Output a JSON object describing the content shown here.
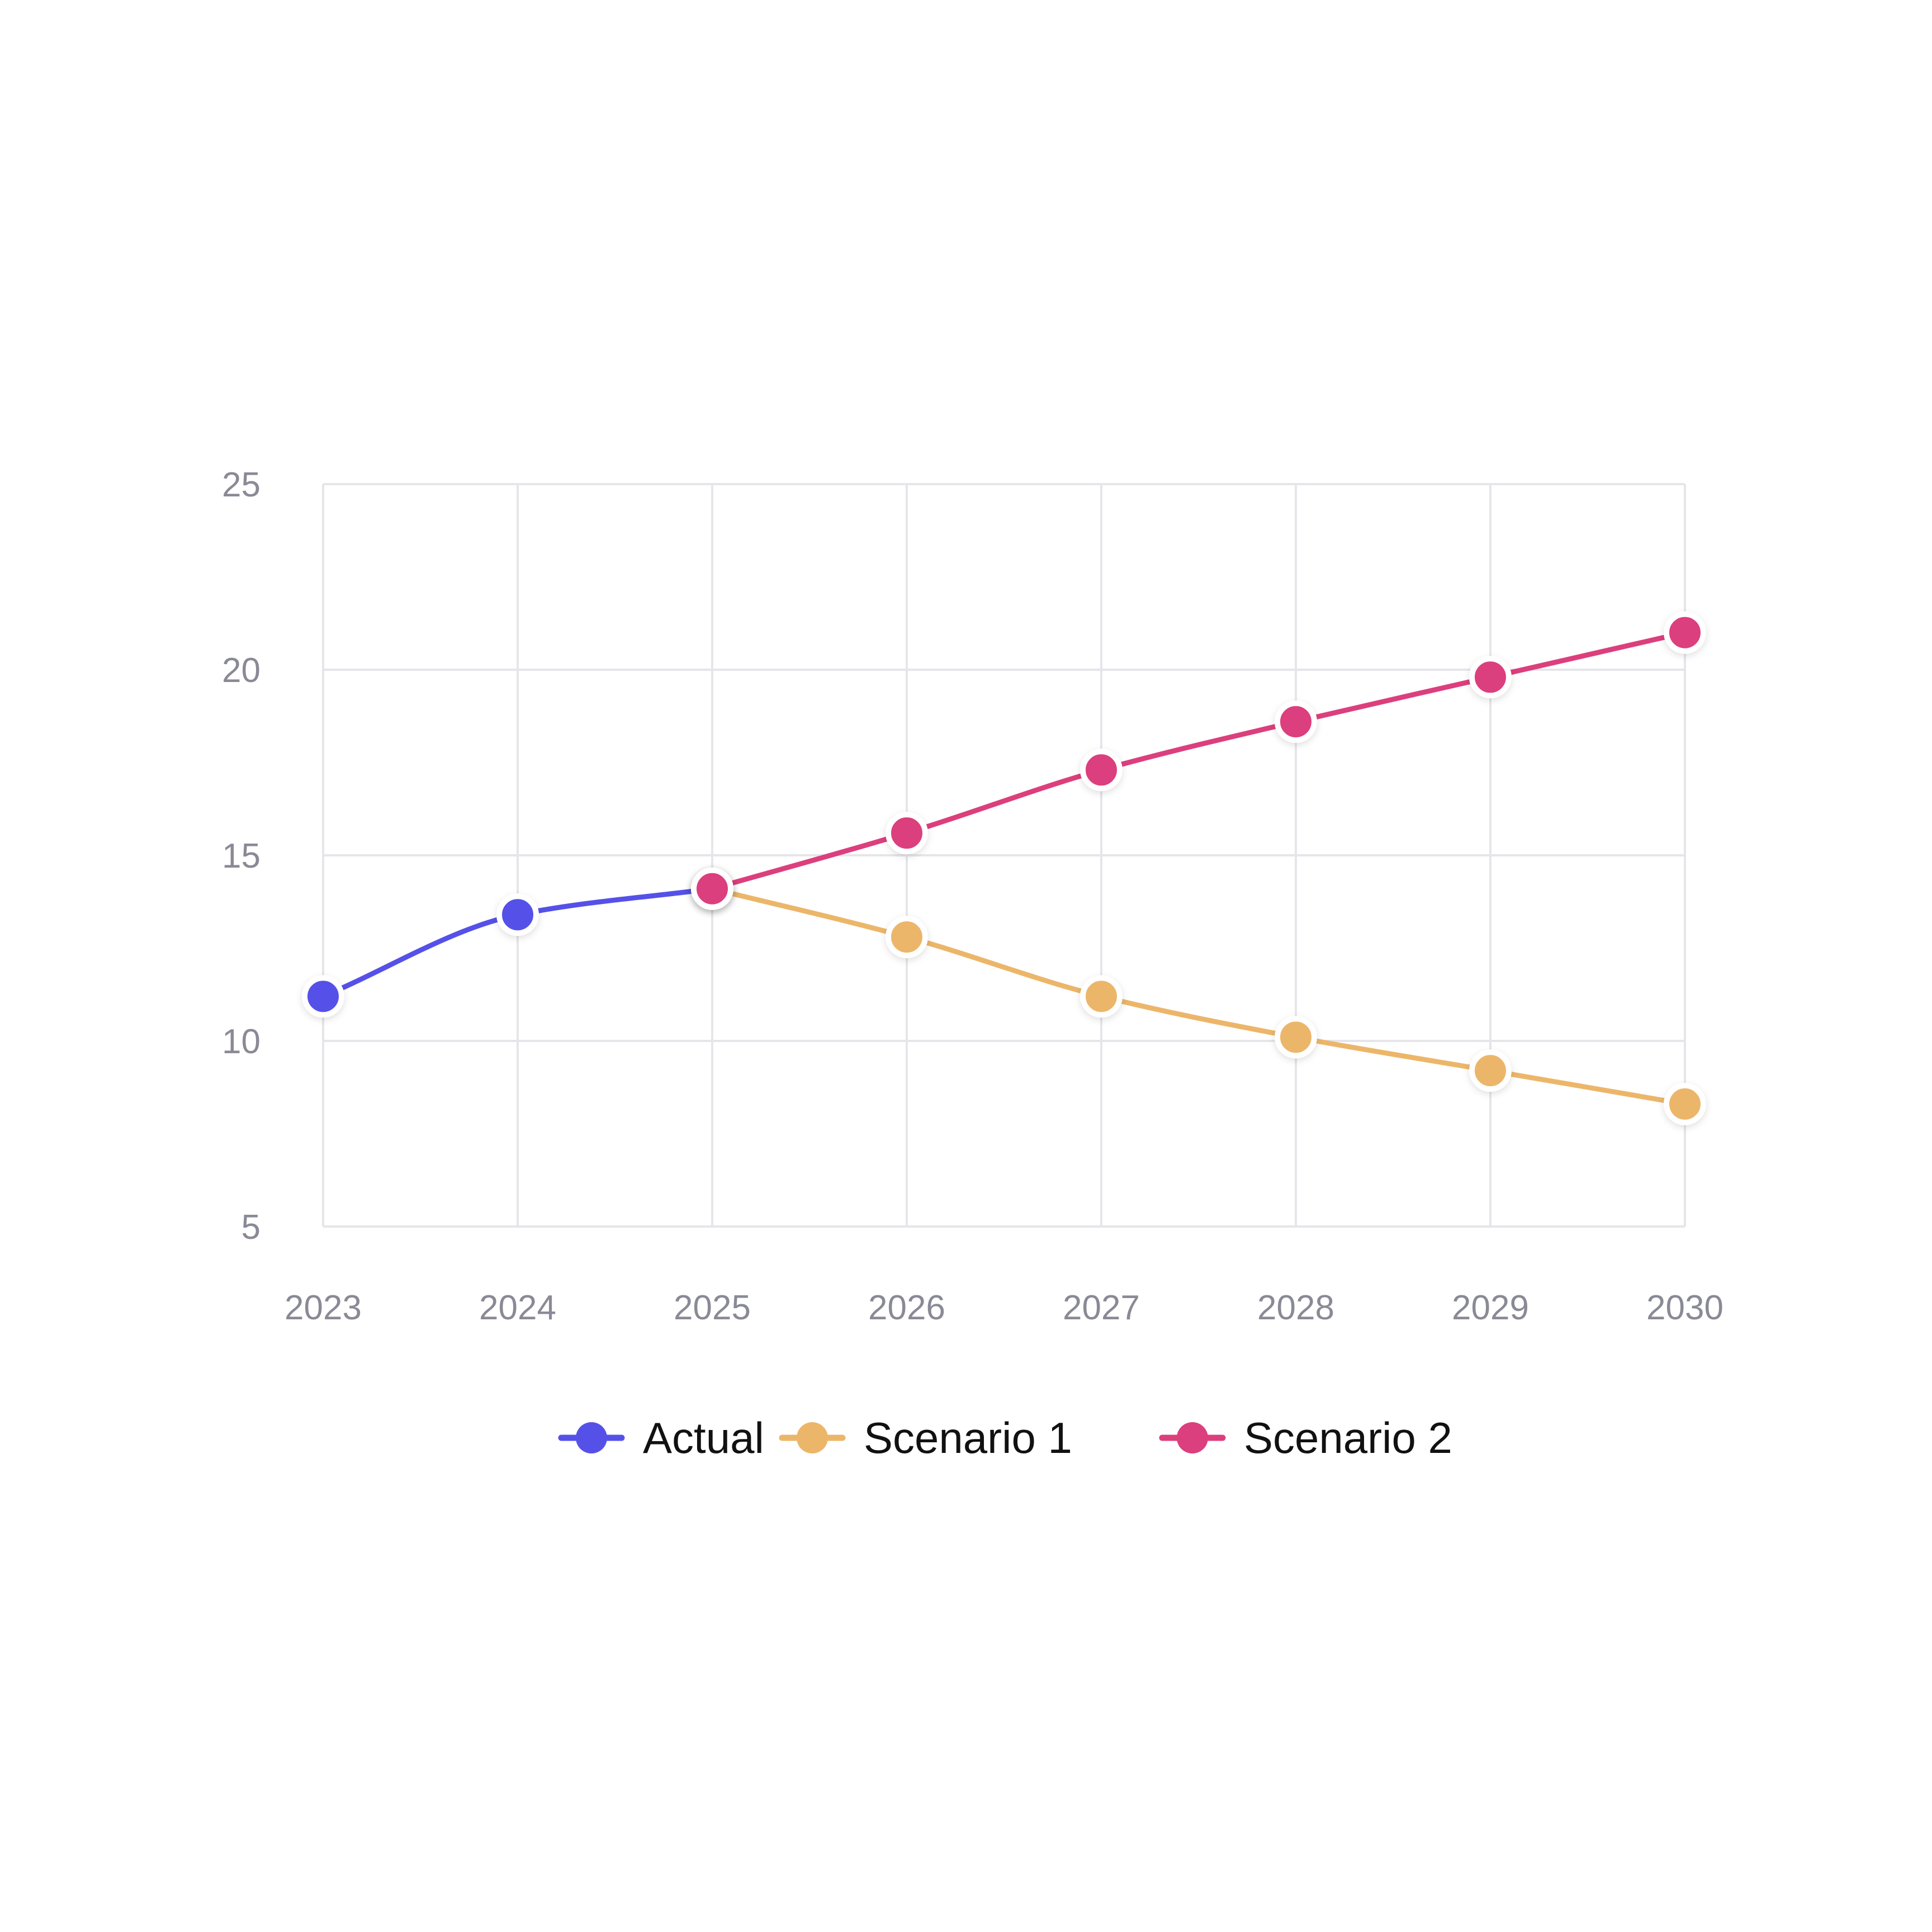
{
  "chart_data": {
    "type": "line",
    "title": "",
    "xlabel": "",
    "ylabel": "",
    "x": [
      "2023",
      "2024",
      "2025",
      "2026",
      "2027",
      "2028",
      "2029",
      "2030"
    ],
    "ylim": [
      5,
      25
    ],
    "yticks": [
      "5",
      "10",
      "15",
      "20",
      "25"
    ],
    "grid": true,
    "legend_position": "bottom-center",
    "series": [
      {
        "name": "Actual",
        "color": "#5551e8",
        "values": [
          11.2,
          13.4,
          14.1,
          null,
          null,
          null,
          null,
          null
        ]
      },
      {
        "name": "Scenario 1",
        "color": "#ecb66a",
        "values": [
          null,
          null,
          14.1,
          12.8,
          11.2,
          10.1,
          9.2,
          8.3
        ]
      },
      {
        "name": "Scenario 2",
        "color": "#dc3f7d",
        "values": [
          null,
          null,
          14.1,
          15.6,
          17.3,
          18.6,
          19.8,
          21.0
        ]
      }
    ]
  }
}
